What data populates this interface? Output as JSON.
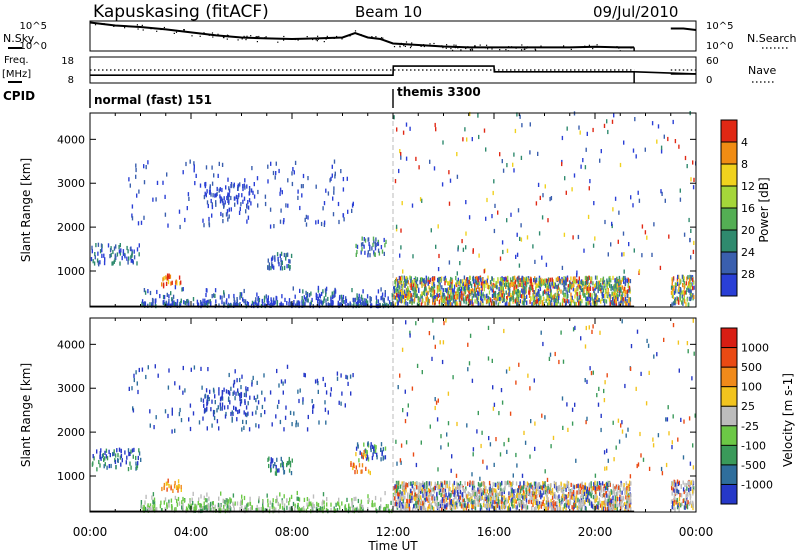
{
  "header": {
    "station": "Kapuskasing (fitACF)",
    "beam": "Beam 10",
    "date": "09/Jul/2010"
  },
  "side_labels": {
    "nsky": "N.Sky",
    "nsearch": "N.Search",
    "freq": "Freq.",
    "freq_unit": "[MHz]",
    "nave": "Nave",
    "cpid": "CPID"
  },
  "cpid": {
    "first": "normal (fast) 151",
    "second": "themis 3300"
  },
  "colors": {
    "axis": "#000000",
    "noise_trace": "#000000",
    "divider": "#bbbbbb"
  },
  "chart_data": [
    {
      "type": "line",
      "name": "noise-panel",
      "left_ticks": [
        "10^5",
        "10^0"
      ],
      "right_ticks": [
        "10^5",
        "10^0"
      ],
      "x_hours": [
        0,
        0.5,
        1,
        2,
        3,
        4,
        5,
        6,
        7,
        8,
        9,
        10,
        10.5,
        11,
        11.5,
        12,
        13,
        14,
        15,
        16,
        17,
        18,
        19,
        20,
        21,
        21.55,
        23,
        23.5,
        24
      ],
      "sky_level": [
        0.95,
        0.9,
        0.85,
        0.8,
        0.72,
        0.62,
        0.52,
        0.45,
        0.42,
        0.4,
        0.42,
        0.45,
        0.6,
        0.45,
        0.4,
        0.25,
        0.2,
        0.15,
        0.12,
        0.12,
        0.12,
        0.12,
        0.12,
        0.14,
        0.12,
        0.12,
        0.75,
        0.75,
        0.7
      ]
    },
    {
      "type": "line",
      "name": "freq-nave-panel",
      "left_ticks": [
        "18",
        "8"
      ],
      "right_ticks": [
        "60",
        "0"
      ],
      "x_hours": [
        0,
        12,
        12.01,
        16,
        16.01,
        21.55,
        23,
        24
      ],
      "freq_mhz": [
        11,
        11,
        14.5,
        14.5,
        12.3,
        12.3,
        11.5,
        11.5
      ],
      "nave": [
        30,
        30,
        30,
        30,
        30,
        30,
        30,
        30
      ]
    },
    {
      "type": "heatmap",
      "name": "power",
      "ylabel": "Slant Range [km]",
      "y_ticks": [
        1000,
        2000,
        3000,
        4000
      ],
      "ylim": [
        180,
        4600
      ],
      "x_ticks": [
        "00:00",
        "04:00",
        "08:00",
        "12:00",
        "16:00",
        "20:00",
        "00:00"
      ],
      "colorbar_label": "Power [dB]",
      "colorbar_ticks": [
        "4",
        "8",
        "12",
        "16",
        "20",
        "24",
        "28"
      ],
      "colorbar_colors": [
        "#2a3fd6",
        "#3a5fae",
        "#2f8a6e",
        "#54ae54",
        "#a5d63a",
        "#f0d21e",
        "#f08c14",
        "#e02814"
      ]
    },
    {
      "type": "heatmap",
      "name": "velocity",
      "ylabel": "Slant Range [km]",
      "y_ticks": [
        1000,
        2000,
        3000,
        4000
      ],
      "ylim": [
        180,
        4600
      ],
      "x_ticks": [
        "00:00",
        "04:00",
        "08:00",
        "12:00",
        "16:00",
        "20:00",
        "00:00"
      ],
      "xlabel": "Time UT",
      "colorbar_label": "Velocity [m s-1]",
      "colorbar_ticks": [
        "1000",
        "500",
        "100",
        "25",
        "-25",
        "-100",
        "-500",
        "-1000"
      ],
      "colorbar_colors": [
        "#2638c8",
        "#2f6e9c",
        "#3a9a5a",
        "#6cc846",
        "#bcbcbc",
        "#f2c41e",
        "#f08a1a",
        "#ea4a14",
        "#d81e14"
      ]
    }
  ]
}
